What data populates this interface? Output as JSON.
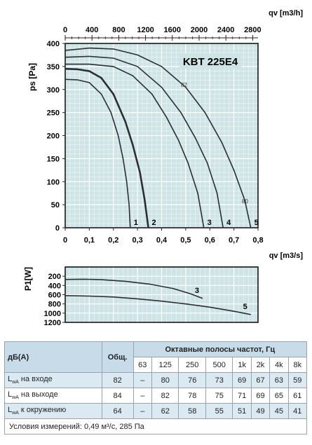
{
  "chart_data": [
    {
      "type": "line",
      "title": "KBT 225E4",
      "ylabel": "ps [Pa]",
      "xlabel_top": "qv [m3/h]",
      "xlabel_bottom": "qv [m3/s]",
      "top_ticks": [
        "0",
        "400",
        "800",
        "1200",
        "1600",
        "2000",
        "2400",
        "2800"
      ],
      "top_tick_values": [
        0,
        400,
        800,
        1200,
        1600,
        2000,
        2400,
        2800
      ],
      "bottom_ticks": [
        "0",
        "0,1",
        "0,2",
        "0,3",
        "0,4",
        "0,5",
        "0,6",
        "0,7",
        "0,8"
      ],
      "bottom_tick_values": [
        0,
        0.1,
        0.2,
        0.3,
        0.4,
        0.5,
        0.6,
        0.7,
        0.8
      ],
      "y_ticks": [
        "0",
        "50",
        "100",
        "150",
        "200",
        "250",
        "300",
        "350",
        "400"
      ],
      "y_tick_values": [
        0,
        50,
        100,
        150,
        200,
        250,
        300,
        350,
        400
      ],
      "xlim": [
        0,
        0.8
      ],
      "ylim": [
        0,
        400
      ],
      "grid": true,
      "annotations": [
        "82",
        "80"
      ],
      "series": [
        {
          "name": "1",
          "x": [
            0,
            0.05,
            0.1,
            0.15,
            0.19,
            0.22,
            0.24,
            0.255,
            0.265,
            0.27
          ],
          "y": [
            322,
            321,
            315,
            290,
            250,
            200,
            150,
            100,
            50,
            0
          ],
          "width": 1.6
        },
        {
          "name": "2",
          "x": [
            0,
            0.05,
            0.1,
            0.15,
            0.2,
            0.25,
            0.28,
            0.31,
            0.33,
            0.345
          ],
          "y": [
            345,
            344,
            340,
            325,
            290,
            230,
            180,
            120,
            60,
            0
          ],
          "width": 2.6
        },
        {
          "name": "3",
          "x": [
            0,
            0.1,
            0.2,
            0.28,
            0.36,
            0.42,
            0.47,
            0.51,
            0.55,
            0.575
          ],
          "y": [
            355,
            355,
            350,
            330,
            290,
            240,
            190,
            140,
            75,
            0
          ],
          "width": 1.6
        },
        {
          "name": "4",
          "x": [
            0,
            0.1,
            0.2,
            0.3,
            0.4,
            0.48,
            0.54,
            0.59,
            0.63,
            0.655
          ],
          "y": [
            370,
            372,
            368,
            350,
            305,
            250,
            195,
            140,
            75,
            0
          ],
          "width": 1.6
        },
        {
          "name": "5",
          "x": [
            0,
            0.1,
            0.2,
            0.3,
            0.4,
            0.5,
            0.58,
            0.65,
            0.7,
            0.745,
            0.77
          ],
          "y": [
            385,
            390,
            388,
            375,
            350,
            305,
            250,
            185,
            125,
            60,
            0
          ],
          "width": 1.6
        }
      ]
    },
    {
      "type": "line",
      "ylabel": "P1[W]",
      "y_ticks": [
        "200",
        "400",
        "600",
        "800",
        "1000",
        "1200"
      ],
      "y_tick_values": [
        200,
        400,
        600,
        800,
        1000,
        1200
      ],
      "xlim": [
        0,
        0.8
      ],
      "ylim": [
        0,
        1200
      ],
      "grid": true,
      "series": [
        {
          "name": "3",
          "x": [
            0,
            0.08,
            0.15,
            0.25,
            0.35,
            0.45,
            0.52,
            0.57
          ],
          "y": [
            270,
            265,
            275,
            310,
            370,
            470,
            580,
            680
          ],
          "width": 1.6
        },
        {
          "name": "5",
          "x": [
            0,
            0.1,
            0.2,
            0.3,
            0.4,
            0.5,
            0.6,
            0.7,
            0.77
          ],
          "y": [
            620,
            630,
            650,
            690,
            740,
            800,
            870,
            960,
            1030
          ],
          "width": 1.6
        }
      ]
    }
  ],
  "table": {
    "col_db": "дБ(А)",
    "col_total": "Общ.",
    "col_bands": "Октавные полосы частот, Гц",
    "freqs": [
      "63",
      "125",
      "250",
      "500",
      "1k",
      "2k",
      "4k",
      "8k"
    ],
    "rows": [
      {
        "label_main": "L",
        "label_sub": "wA",
        "label_rest": " на входе",
        "values": [
          "82",
          "–",
          "80",
          "76",
          "73",
          "69",
          "67",
          "63",
          "59"
        ]
      },
      {
        "label_main": "L",
        "label_sub": "wA",
        "label_rest": " на выходе",
        "values": [
          "84",
          "–",
          "82",
          "78",
          "75",
          "71",
          "69",
          "65",
          "61"
        ]
      },
      {
        "label_main": "L",
        "label_sub": "wA",
        "label_rest": " к окружению",
        "values": [
          "64",
          "–",
          "62",
          "58",
          "55",
          "51",
          "49",
          "45",
          "41"
        ]
      }
    ],
    "footer": "Условия измерений: 0,49 м³/с, 285 Па"
  }
}
